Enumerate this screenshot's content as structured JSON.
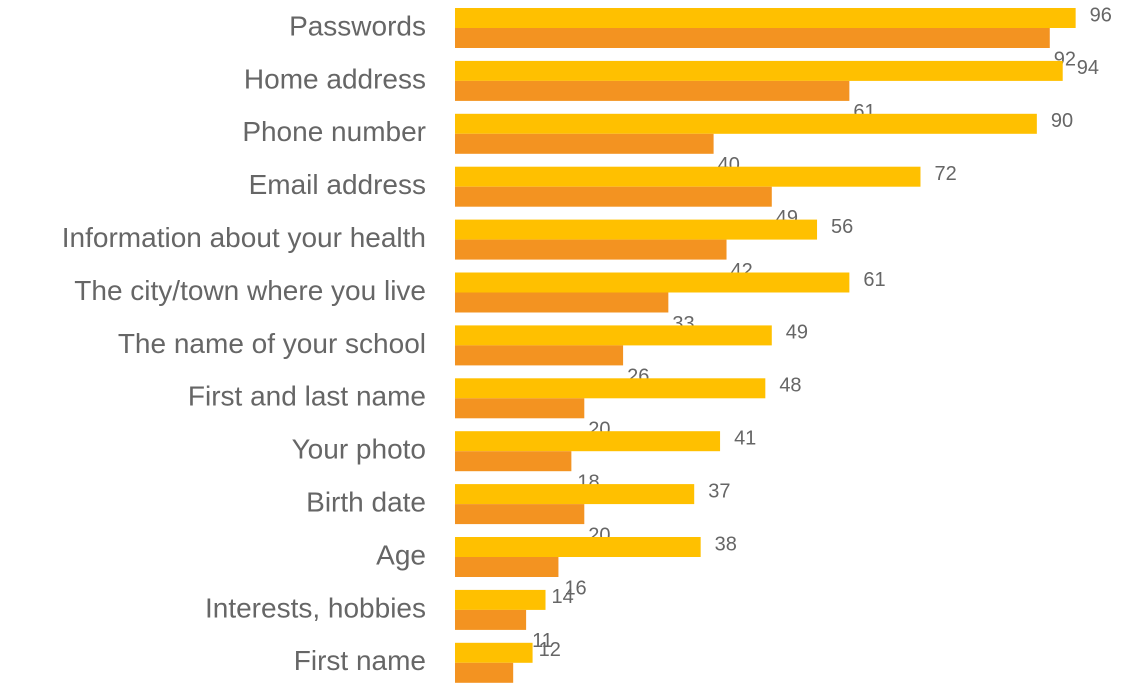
{
  "chart_data": {
    "type": "bar",
    "orientation": "horizontal",
    "title": "",
    "xlabel": "",
    "ylabel": "",
    "grid": false,
    "legend": "none",
    "xlim": [
      0,
      100
    ],
    "categories": [
      "Passwords",
      "Home address",
      "Phone number",
      "Email address",
      "Information about your health",
      "The city/town where you live",
      "The name of your school",
      "First and last name",
      "Your photo",
      "Birth date",
      "Age",
      "Interests, hobbies",
      "First name"
    ],
    "series": [
      {
        "color": "#FFC000",
        "values": [
          96,
          94,
          90,
          72,
          56,
          61,
          49,
          48,
          41,
          37,
          38,
          14,
          12
        ]
      },
      {
        "color": "#F39321",
        "values": [
          92,
          61,
          40,
          49,
          42,
          33,
          26,
          20,
          18,
          20,
          16,
          11,
          9
        ]
      }
    ]
  }
}
